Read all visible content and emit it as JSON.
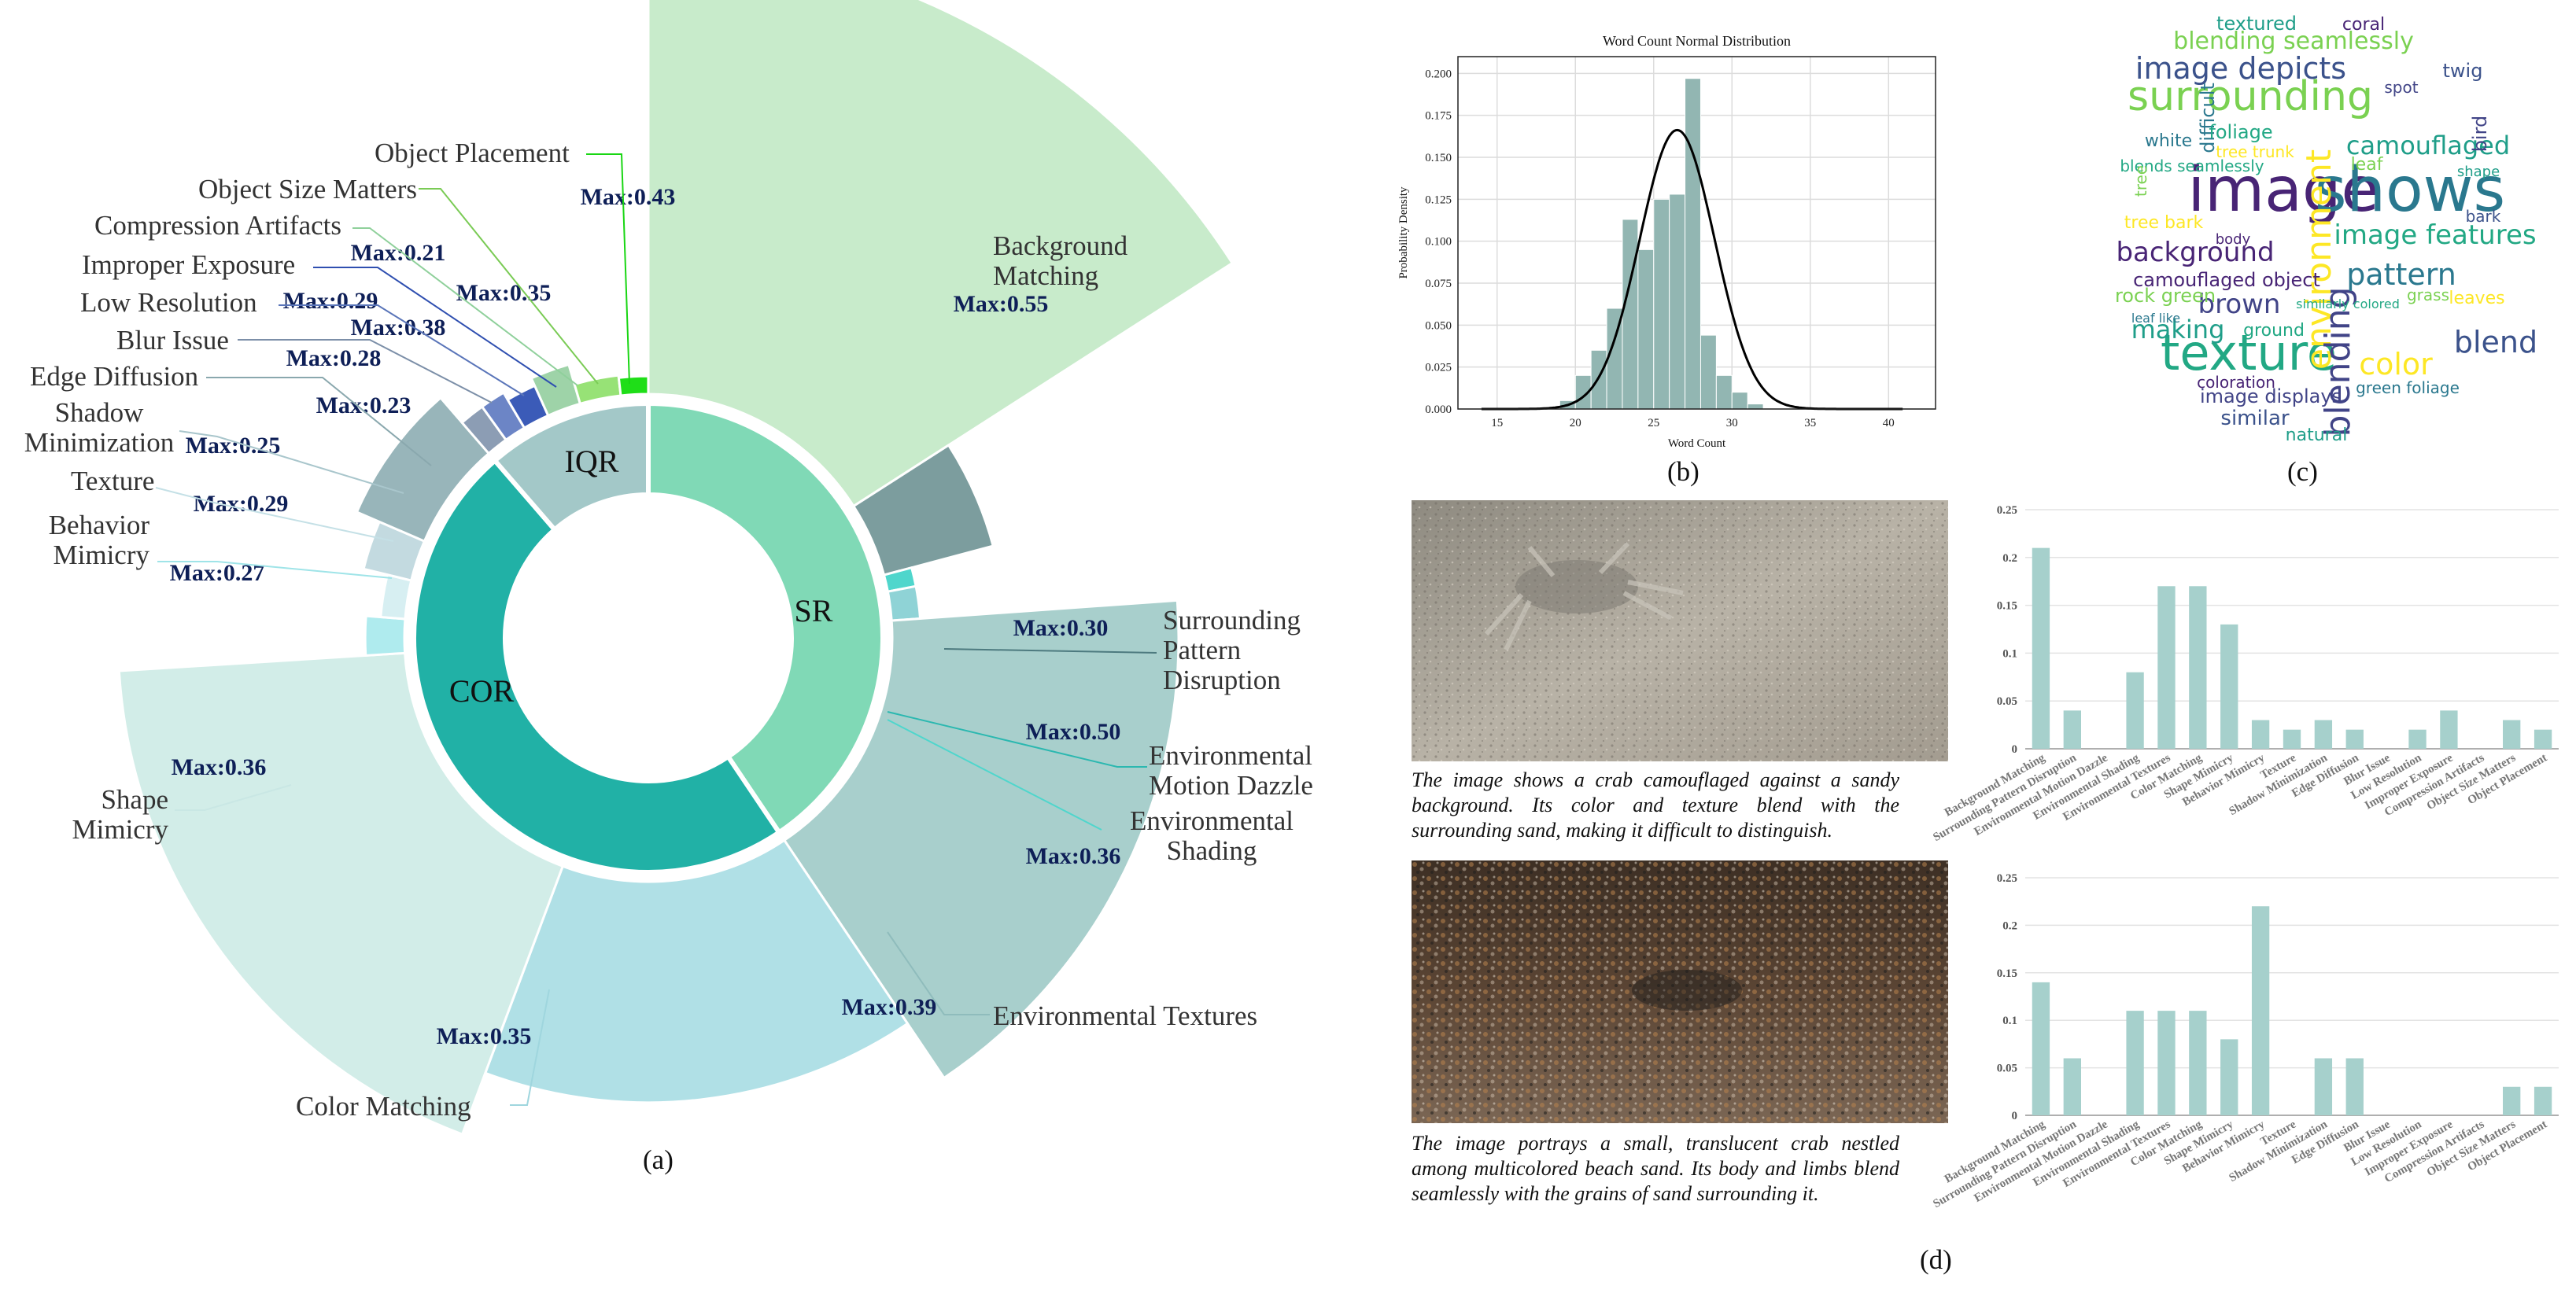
{
  "colors": {
    "COR": "#21b1a6",
    "SR": "#80d9b6",
    "IQR": "#a3c8c8",
    "bar": "#a6d0cc",
    "hist": "#92b6b2",
    "maxlabel": "#0e1f57"
  },
  "captions": {
    "a": "(a)",
    "b": "(b)",
    "c": "(c)",
    "d": "(d)"
  },
  "chart_data": [
    {
      "type": "pie",
      "panel": "a",
      "inner_ring": [
        {
          "label": "SR",
          "value": 0.405
        },
        {
          "label": "COR",
          "value": 0.48
        },
        {
          "label": "IQR",
          "value": 0.115
        }
      ],
      "outer_ring": [
        {
          "label": "Background Matching",
          "group": "SR",
          "max": "Max:0.55",
          "value": 0.55
        },
        {
          "label": "Surrounding Pattern Disruption",
          "group": "SR",
          "max": "Max:0.30",
          "value": 0.3
        },
        {
          "label": "Environmental Motion Dazzle",
          "group": "SR",
          "max": "Max:0.50",
          "value": 0.5
        },
        {
          "label": "Environmental Shading",
          "group": "SR",
          "max": "Max:0.36",
          "value": 0.36
        },
        {
          "label": "Environmental Textures",
          "group": "SR",
          "max": "Max:0.39",
          "value": 0.39
        },
        {
          "label": "Color Matching",
          "group": "COR",
          "max": "Max:0.35",
          "value": 0.35
        },
        {
          "label": "Shape Mimicry",
          "group": "COR",
          "max": "Max:0.36",
          "value": 0.36
        },
        {
          "label": "Behavior Mimicry",
          "group": "COR",
          "max": "Max:0.27",
          "value": 0.27
        },
        {
          "label": "Texture",
          "group": "COR",
          "max": "Max:0.29",
          "value": 0.29
        },
        {
          "label": "Shadow Minimization",
          "group": "COR",
          "max": "Max:0.25",
          "value": 0.25
        },
        {
          "label": "Edge Diffusion",
          "group": "IQR",
          "max": "Max:0.23",
          "value": 0.23
        },
        {
          "label": "Blur Issue",
          "group": "IQR",
          "max": "Max:0.28",
          "value": 0.28
        },
        {
          "label": "Low Resolution",
          "group": "IQR",
          "max": "Max:0.29",
          "value": 0.29
        },
        {
          "label": "Improper Exposure",
          "group": "IQR",
          "max": "Max:0.38",
          "value": 0.38
        },
        {
          "label": "Compression Artifacts",
          "group": "IQR",
          "max": "Max:0.21",
          "value": 0.21
        },
        {
          "label": "Object Size Matters",
          "group": "IQR",
          "max": "Max:0.35",
          "value": 0.35
        },
        {
          "label": "Object Placement",
          "group": "IQR",
          "max": "Max:0.43",
          "value": 0.43
        }
      ]
    },
    {
      "type": "bar",
      "panel": "b",
      "title": "Word Count Normal Distribution",
      "xlabel": "Word Count",
      "ylabel": "Probability Density",
      "xlim": [
        12.5,
        43
      ],
      "ylim": [
        0,
        0.21
      ],
      "xticks": [
        "15",
        "20",
        "25",
        "30",
        "35",
        "40"
      ],
      "yticks": [
        "0.000",
        "0.025",
        "0.050",
        "0.075",
        "0.100",
        "0.125",
        "0.150",
        "0.175",
        "0.200"
      ],
      "bins": [
        {
          "x0": 19,
          "x1": 20,
          "y": 0.005
        },
        {
          "x0": 20,
          "x1": 21,
          "y": 0.02
        },
        {
          "x0": 21,
          "x1": 22,
          "y": 0.035
        },
        {
          "x0": 22,
          "x1": 23,
          "y": 0.06
        },
        {
          "x0": 23,
          "x1": 24,
          "y": 0.113
        },
        {
          "x0": 24,
          "x1": 25,
          "y": 0.095
        },
        {
          "x0": 25,
          "x1": 26,
          "y": 0.125
        },
        {
          "x0": 26,
          "x1": 27,
          "y": 0.128
        },
        {
          "x0": 27,
          "x1": 28,
          "y": 0.197
        },
        {
          "x0": 28,
          "x1": 29,
          "y": 0.044
        },
        {
          "x0": 29,
          "x1": 30,
          "y": 0.02
        },
        {
          "x0": 30,
          "x1": 31,
          "y": 0.01
        },
        {
          "x0": 31,
          "x1": 32,
          "y": 0.003
        }
      ],
      "normal_curve": {
        "mean": 26.5,
        "sd": 2.4,
        "x_range": [
          14,
          41
        ]
      }
    },
    {
      "type": "wordcloud",
      "panel": "c",
      "words": [
        {
          "text": "image",
          "weight": 5
        },
        {
          "text": "shows",
          "weight": 5
        },
        {
          "text": "texture",
          "weight": 4
        },
        {
          "text": "surrounding",
          "weight": 4
        },
        {
          "text": "environment",
          "weight": 3
        },
        {
          "text": "blending",
          "weight": 3
        },
        {
          "text": "image depicts",
          "weight": 3
        },
        {
          "text": "camouflaged",
          "weight": 2
        },
        {
          "text": "background",
          "weight": 2
        },
        {
          "text": "pattern",
          "weight": 2
        },
        {
          "text": "image features",
          "weight": 2
        },
        {
          "text": "blending seamlessly",
          "weight": 2
        },
        {
          "text": "color",
          "weight": 2
        },
        {
          "text": "brown",
          "weight": 2
        },
        {
          "text": "blend",
          "weight": 2
        },
        {
          "text": "making",
          "weight": 2
        },
        {
          "text": "camouflaged object",
          "weight": 1
        },
        {
          "text": "difficult",
          "weight": 1
        },
        {
          "text": "foliage",
          "weight": 1
        },
        {
          "text": "leaf",
          "weight": 1
        },
        {
          "text": "tree bark",
          "weight": 1
        },
        {
          "text": "bird",
          "weight": 1
        },
        {
          "text": "twig",
          "weight": 1
        },
        {
          "text": "textured",
          "weight": 1
        },
        {
          "text": "coral",
          "weight": 1
        },
        {
          "text": "white",
          "weight": 1
        },
        {
          "text": "blends seamlessly",
          "weight": 1
        },
        {
          "text": "rock green",
          "weight": 1
        },
        {
          "text": "leaves",
          "weight": 1
        },
        {
          "text": "image displays",
          "weight": 1
        },
        {
          "text": "similar",
          "weight": 1
        },
        {
          "text": "natural",
          "weight": 1
        },
        {
          "text": "coloration",
          "weight": 1
        },
        {
          "text": "green foliage",
          "weight": 1
        },
        {
          "text": "ground",
          "weight": 1
        },
        {
          "text": "grass",
          "weight": 1
        },
        {
          "text": "tree trunk",
          "weight": 1
        },
        {
          "text": "spot",
          "weight": 1
        },
        {
          "text": "bark",
          "weight": 1
        },
        {
          "text": "shape",
          "weight": 1
        },
        {
          "text": "body",
          "weight": 1
        },
        {
          "text": "leaf like",
          "weight": 1
        },
        {
          "text": "similarly colored",
          "weight": 1
        },
        {
          "text": "tree",
          "weight": 1
        }
      ]
    },
    {
      "type": "bar",
      "panel": "d-1",
      "categories": [
        "Background Matching",
        "Surrounding Pattern Disruption",
        "Environmental Motion Dazzle",
        "Environmental Shading",
        "Environmental Textures",
        "Color Matching",
        "Shape Mimicry",
        "Behavior Mimicry",
        "Texture",
        "Shadow Minimization",
        "Edge Diffusion",
        "Blur Issue",
        "Low Resolution",
        "Improper Exposure",
        "Compression Artifacts",
        "Object Size Matters",
        "Object Placement"
      ],
      "values": [
        0.21,
        0.04,
        0,
        0.08,
        0.17,
        0.17,
        0.13,
        0.03,
        0.02,
        0.03,
        0.02,
        0,
        0.02,
        0.04,
        0,
        0.03,
        0.02
      ],
      "yticks": [
        "0",
        "0.05",
        "0.1",
        "0.15",
        "0.2",
        "0.25"
      ],
      "ylim": [
        0,
        0.25
      ]
    },
    {
      "type": "bar",
      "panel": "d-2",
      "categories": [
        "Background Matching",
        "Surrounding Pattern Disruption",
        "Environmental Motion Dazzle",
        "Environmental Shading",
        "Environmental Textures",
        "Color Matching",
        "Shape Mimicry",
        "Behavior Mimicry",
        "Texture",
        "Shadow Minimization",
        "Edge Diffusion",
        "Blur Issue",
        "Low Resolution",
        "Improper Exposure",
        "Compression Artifacts",
        "Object Size Matters",
        "Object Placement"
      ],
      "values": [
        0.14,
        0.06,
        0,
        0.11,
        0.11,
        0.11,
        0.08,
        0.22,
        0,
        0.06,
        0.06,
        0,
        0,
        0,
        0,
        0.03,
        0.03
      ],
      "yticks": [
        "0",
        "0.05",
        "0.1",
        "0.15",
        "0.2",
        "0.25"
      ],
      "ylim": [
        0,
        0.25
      ]
    }
  ],
  "examples": [
    {
      "description": "The image shows a crab camouflaged against a sandy background. Its color and texture blend with the surrounding sand, making it difficult to distinguish."
    },
    {
      "description": "The image portrays a small, translucent crab nestled among multicolored beach sand. Its body and limbs blend seamlessly with the grains of sand surrounding it."
    }
  ]
}
